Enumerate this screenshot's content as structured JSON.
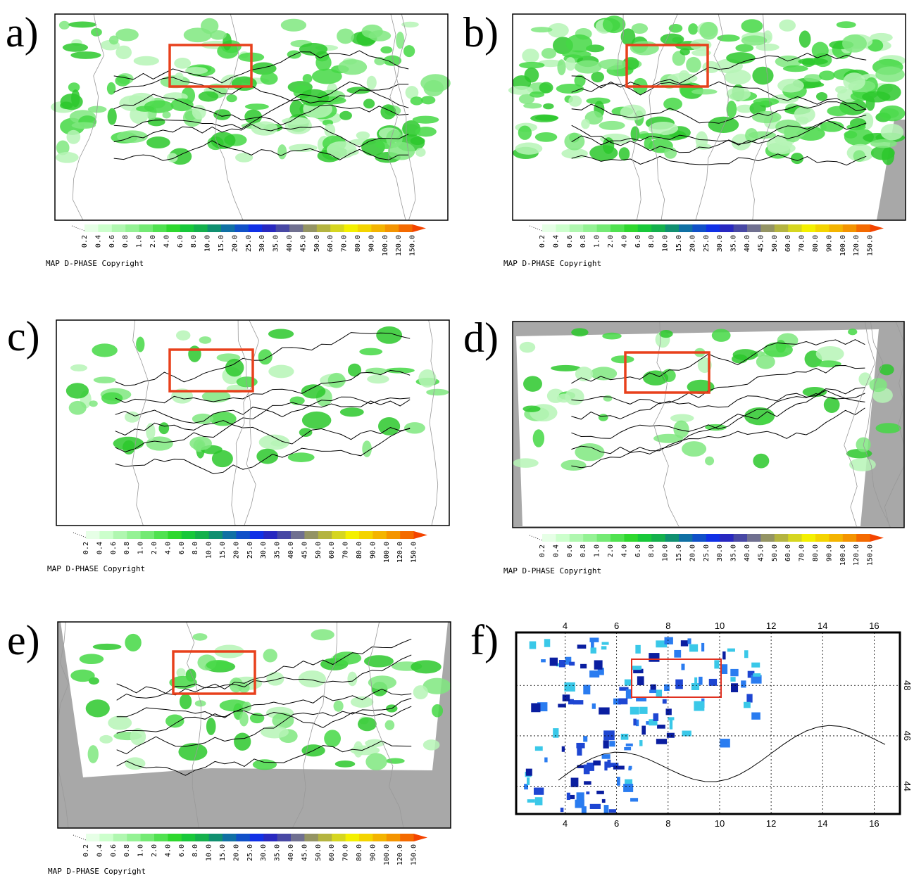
{
  "panels": [
    {
      "label": "a)"
    },
    {
      "label": "b)"
    },
    {
      "label": "c)"
    },
    {
      "label": "d)"
    },
    {
      "label": "e)"
    },
    {
      "label": "f)"
    }
  ],
  "colorbar": {
    "labels": [
      "0.2",
      "0.4",
      "0.6",
      "0.8",
      "1.0",
      "2.0",
      "4.0",
      "6.0",
      "8.0",
      "10.0",
      "15.0",
      "20.0",
      "25.0",
      "30.0",
      "35.0",
      "40.0",
      "45.0",
      "50.0",
      "60.0",
      "70.0",
      "80.0",
      "90.0",
      "100.0",
      "120.0",
      "150.0"
    ],
    "colors": [
      "#e6ffe6",
      "#ccffcc",
      "#b0f7b0",
      "#94f294",
      "#74ea74",
      "#50e250",
      "#2ed82e",
      "#18c83a",
      "#14b04c",
      "#109070",
      "#1070a4",
      "#1050c8",
      "#1030e6",
      "#2828c0",
      "#4848a4",
      "#707090",
      "#949464",
      "#b4b440",
      "#d6d620",
      "#f4f000",
      "#f4d400",
      "#f4b400",
      "#f49400",
      "#f46a00",
      "#f44400"
    ]
  },
  "copyright": "MAP D-PHASE Copyright",
  "panel_f_axes": {
    "xlim": [
      2.1,
      17.0
    ],
    "ylim": [
      42.9,
      50.1
    ],
    "xticks": [
      4,
      6,
      8,
      10,
      12,
      14,
      16
    ],
    "yticks": [
      44,
      46,
      48
    ]
  }
}
